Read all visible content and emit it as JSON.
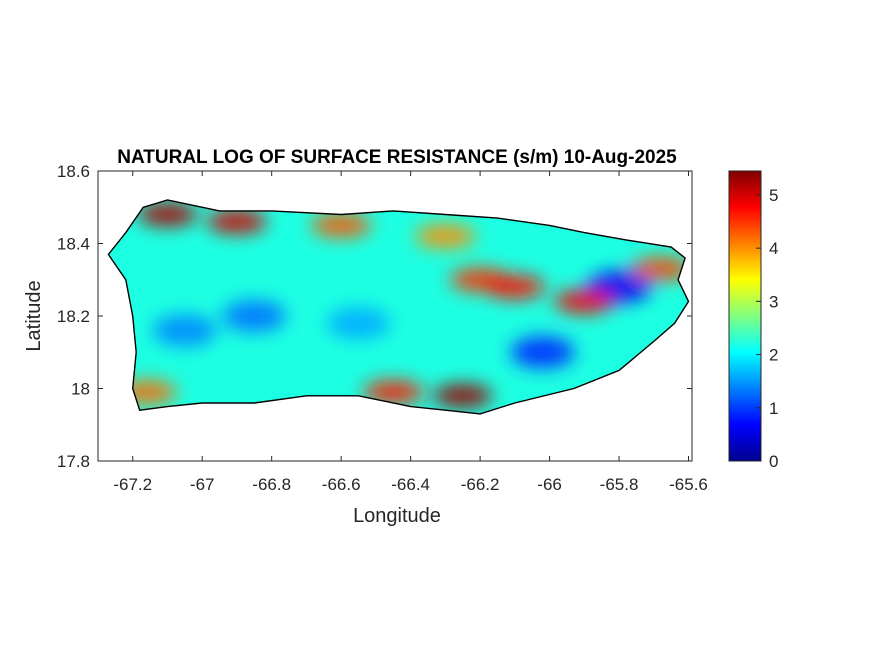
{
  "figure": {
    "title": "NATURAL LOG OF SURFACE RESISTANCE (s/m) 10-Aug-2025",
    "xlabel": "Longitude",
    "ylabel": "Latitude"
  },
  "chart_data": {
    "type": "heatmap",
    "title": "NATURAL LOG OF SURFACE RESISTANCE (s/m) 10-Aug-2025",
    "xlabel": "Longitude",
    "ylabel": "Latitude",
    "xlim": [
      -67.3,
      -65.59
    ],
    "ylim": [
      17.8,
      18.6
    ],
    "x_ticks": [
      -67.2,
      -67,
      -66.8,
      -66.6,
      -66.4,
      -66.2,
      -66,
      -65.8,
      -65.6
    ],
    "x_tick_labels": [
      "-67.2",
      "-67",
      "-66.8",
      "-66.6",
      "-66.4",
      "-66.2",
      "-66",
      "-65.8",
      "-65.6"
    ],
    "y_ticks": [
      17.8,
      18,
      18.2,
      18.4,
      18.6
    ],
    "y_tick_labels": [
      "17.8",
      "18",
      "18.2",
      "18.4",
      "18.6"
    ],
    "colorbar": {
      "colormap": "jet",
      "limits": [
        0,
        5.45
      ],
      "ticks": [
        0,
        1,
        2,
        3,
        4,
        5
      ],
      "tick_labels": [
        "0",
        "1",
        "2",
        "3",
        "4",
        "5"
      ],
      "colors": [
        "#00008f",
        "#0000ff",
        "#0080ff",
        "#00ffff",
        "#80ff80",
        "#ffff00",
        "#ff8000",
        "#ff0000",
        "#800000"
      ]
    },
    "grid": false,
    "outline": [
      [
        -67.27,
        18.37
      ],
      [
        -67.22,
        18.43
      ],
      [
        -67.17,
        18.5
      ],
      [
        -67.1,
        18.52
      ],
      [
        -66.95,
        18.49
      ],
      [
        -66.8,
        18.49
      ],
      [
        -66.6,
        18.48
      ],
      [
        -66.45,
        18.49
      ],
      [
        -66.3,
        18.48
      ],
      [
        -66.15,
        18.47
      ],
      [
        -66.0,
        18.45
      ],
      [
        -65.9,
        18.43
      ],
      [
        -65.78,
        18.41
      ],
      [
        -65.65,
        18.39
      ],
      [
        -65.61,
        18.36
      ],
      [
        -65.63,
        18.3
      ],
      [
        -65.6,
        18.24
      ],
      [
        -65.64,
        18.18
      ],
      [
        -65.7,
        18.13
      ],
      [
        -65.8,
        18.05
      ],
      [
        -65.93,
        18.0
      ],
      [
        -66.1,
        17.96
      ],
      [
        -66.2,
        17.93
      ],
      [
        -66.3,
        17.94
      ],
      [
        -66.4,
        17.95
      ],
      [
        -66.55,
        17.98
      ],
      [
        -66.7,
        17.98
      ],
      [
        -66.85,
        17.96
      ],
      [
        -67.0,
        17.96
      ],
      [
        -67.1,
        17.95
      ],
      [
        -67.18,
        17.94
      ],
      [
        -67.2,
        18.0
      ],
      [
        -67.19,
        18.1
      ],
      [
        -67.2,
        18.2
      ],
      [
        -67.22,
        18.3
      ]
    ],
    "hotspots": [
      {
        "lon": -67.1,
        "lat": 18.48,
        "value": 5.2
      },
      {
        "lon": -66.9,
        "lat": 18.46,
        "value": 5.0
      },
      {
        "lon": -66.6,
        "lat": 18.45,
        "value": 4.3
      },
      {
        "lon": -66.3,
        "lat": 18.42,
        "value": 4.0
      },
      {
        "lon": -66.2,
        "lat": 18.3,
        "value": 4.5
      },
      {
        "lon": -66.1,
        "lat": 18.28,
        "value": 4.7
      },
      {
        "lon": -65.9,
        "lat": 18.24,
        "value": 4.8
      },
      {
        "lon": -66.25,
        "lat": 17.98,
        "value": 5.3
      },
      {
        "lon": -66.45,
        "lat": 17.99,
        "value": 4.6
      },
      {
        "lon": -67.16,
        "lat": 17.99,
        "value": 4.2
      },
      {
        "lon": -65.68,
        "lat": 18.33,
        "value": 4.4
      }
    ],
    "coldspots": [
      {
        "lon": -65.8,
        "lat": 18.28,
        "value": 0.6
      },
      {
        "lon": -66.02,
        "lat": 18.1,
        "value": 0.9
      },
      {
        "lon": -66.85,
        "lat": 18.2,
        "value": 1.3
      },
      {
        "lon": -67.05,
        "lat": 18.16,
        "value": 1.4
      },
      {
        "lon": -66.55,
        "lat": 18.18,
        "value": 1.6
      }
    ]
  }
}
